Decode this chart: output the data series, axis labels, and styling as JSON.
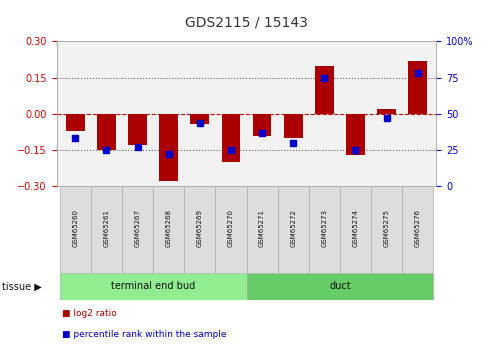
{
  "title": "GDS2115 / 15143",
  "samples": [
    "GSM65260",
    "GSM65261",
    "GSM65267",
    "GSM65268",
    "GSM65269",
    "GSM65270",
    "GSM65271",
    "GSM65272",
    "GSM65273",
    "GSM65274",
    "GSM65275",
    "GSM65276"
  ],
  "log2_ratio": [
    -0.07,
    -0.15,
    -0.13,
    -0.28,
    -0.04,
    -0.2,
    -0.09,
    -0.1,
    0.2,
    -0.17,
    0.02,
    0.22
  ],
  "percentile": [
    33,
    25,
    27,
    22,
    44,
    25,
    37,
    30,
    75,
    25,
    47,
    78
  ],
  "ylim": [
    -0.3,
    0.3
  ],
  "yticks_left": [
    -0.3,
    -0.15,
    0.0,
    0.15,
    0.3
  ],
  "yticks_right": [
    0,
    25,
    50,
    75,
    100
  ],
  "bar_color": "#AA0000",
  "dot_color": "#0000CC",
  "zero_line_color": "#CC0000",
  "dotted_line_color": "#666666",
  "plot_bg_color": "#F2F2F2",
  "title_color": "#333333",
  "left_axis_color": "#CC0000",
  "right_axis_color": "#0000CC",
  "tissue_label": "tissue",
  "legend_log2": "log2 ratio",
  "legend_pct": "percentile rank within the sample",
  "group_ranges": [
    [
      0,
      6,
      "terminal end bud",
      "#90EE90"
    ],
    [
      6,
      12,
      "duct",
      "#66CC66"
    ]
  ],
  "sample_bg": "#DDDDDD"
}
